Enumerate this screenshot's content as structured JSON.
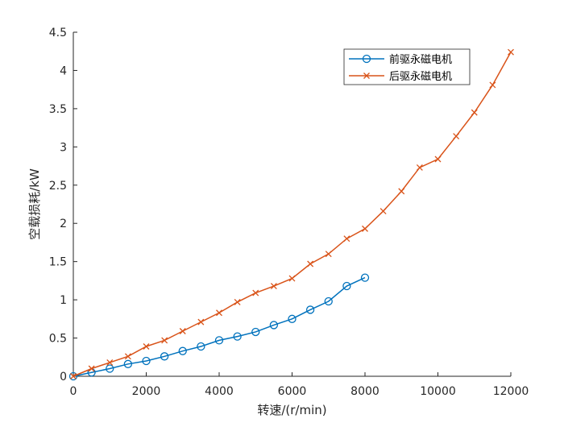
{
  "chart_data": {
    "type": "line",
    "xlabel": "转速/(r/min)",
    "ylabel": "空载损耗/kW",
    "xlim": [
      0,
      12000
    ],
    "ylim": [
      0,
      4.5
    ],
    "x_ticks": [
      0,
      2000,
      4000,
      6000,
      8000,
      10000,
      12000
    ],
    "x_tick_labels": [
      "0",
      "2000",
      "4000",
      "6000",
      "8000",
      "10000",
      "12000"
    ],
    "y_ticks": [
      0,
      0.5,
      1,
      1.5,
      2,
      2.5,
      3,
      3.5,
      4,
      4.5
    ],
    "y_tick_labels": [
      "0",
      "0.5",
      "1",
      "1.5",
      "2",
      "2.5",
      "3",
      "3.5",
      "4",
      "4.5"
    ],
    "grid": false,
    "legend_position": "top-right",
    "series": [
      {
        "name": "前驱永磁电机",
        "color": "#0072BD",
        "marker": "circle",
        "x": [
          0,
          500,
          1000,
          1500,
          2000,
          2500,
          3000,
          3500,
          4000,
          4500,
          5000,
          5500,
          6000,
          6500,
          7000,
          7500,
          8000
        ],
        "y": [
          0,
          0.05,
          0.1,
          0.16,
          0.2,
          0.26,
          0.33,
          0.39,
          0.47,
          0.52,
          0.58,
          0.67,
          0.75,
          0.87,
          0.98,
          1.18,
          1.29
        ]
      },
      {
        "name": "后驱永磁电机",
        "color": "#D95319",
        "marker": "x",
        "x": [
          0,
          500,
          1000,
          1500,
          2000,
          2500,
          3000,
          3500,
          4000,
          4500,
          5000,
          5500,
          6000,
          6500,
          7000,
          7500,
          8000,
          8500,
          9000,
          9500,
          10000,
          10500,
          11000,
          11500,
          12000
        ],
        "y": [
          0,
          0.1,
          0.18,
          0.26,
          0.39,
          0.47,
          0.59,
          0.71,
          0.83,
          0.97,
          1.09,
          1.18,
          1.28,
          1.47,
          1.6,
          1.8,
          1.93,
          2.16,
          2.42,
          2.73,
          2.84,
          3.14,
          3.45,
          3.81,
          4.24
        ]
      }
    ]
  }
}
